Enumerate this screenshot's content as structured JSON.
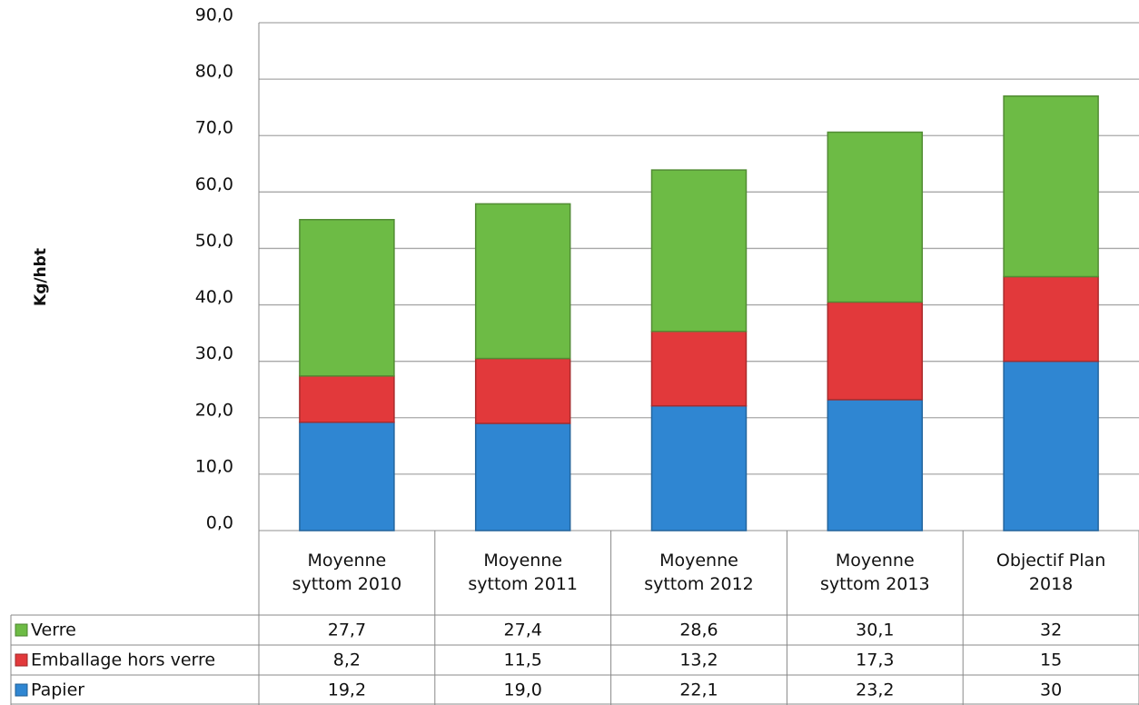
{
  "chart_data": {
    "type": "stacked_bar",
    "y_axis_label": "Kg/hbt",
    "categories": [
      "Moyenne syttom 2010",
      "Moyenne syttom 2011",
      "Moyenne syttom 2012",
      "Moyenne syttom 2013",
      "Objectif Plan 2018"
    ],
    "series": [
      {
        "name": "Papier",
        "color": "#2f86d2",
        "values": [
          19.2,
          19.0,
          22.1,
          23.2,
          30
        ],
        "value_labels": [
          "19,2",
          "19,0",
          "22,1",
          "23,2",
          "30"
        ]
      },
      {
        "name": "Emballage hors verre",
        "color": "#e2393b",
        "values": [
          8.2,
          11.5,
          13.2,
          17.3,
          15
        ],
        "value_labels": [
          "8,2",
          "11,5",
          "13,2",
          "17,3",
          "15"
        ]
      },
      {
        "name": "Verre",
        "color": "#6dbb45",
        "values": [
          27.7,
          27.4,
          28.6,
          30.1,
          32
        ],
        "value_labels": [
          "27,7",
          "27,4",
          "28,6",
          "30,1",
          "32"
        ]
      }
    ],
    "ylim": [
      0,
      90
    ],
    "yticks": [
      {
        "value": 0,
        "label": "0,0"
      },
      {
        "value": 10,
        "label": "10,0"
      },
      {
        "value": 20,
        "label": "20,0"
      },
      {
        "value": 30,
        "label": "30,0"
      },
      {
        "value": 40,
        "label": "40,0"
      },
      {
        "value": 50,
        "label": "50,0"
      },
      {
        "value": 60,
        "label": "60,0"
      },
      {
        "value": 70,
        "label": "70,0"
      },
      {
        "value": 80,
        "label": "80,0"
      },
      {
        "value": 90,
        "label": "90,0"
      }
    ],
    "grid": true
  }
}
